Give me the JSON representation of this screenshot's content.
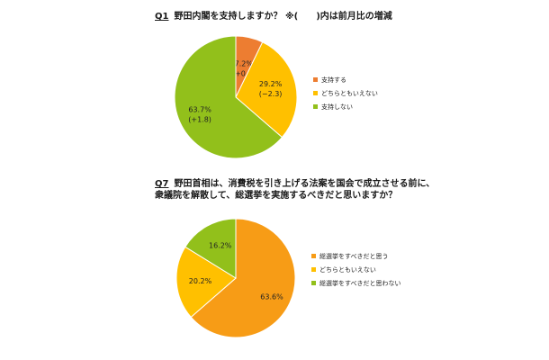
{
  "q1": {
    "num": "Q1",
    "text": "野田内閣を支持しますか？ ※(　　)内は前月比の増減"
  },
  "q7": {
    "num": "Q7",
    "line1": "野田首相は、消費税を引き上げる法案を国会で成立させる前に、",
    "line2": "衆議院を解散して、総選挙を実施するべきだと思いますか？"
  },
  "chart_data": [
    {
      "type": "pie",
      "title": "野田内閣を支持しますか？ ※(　　)内は前月比の増減",
      "series": [
        {
          "label": "支持する",
          "value": 7.2,
          "value_text": "7.2%",
          "change_text": "(+0.6)",
          "color": "#ed7d31"
        },
        {
          "label": "どちらともいえない",
          "value": 29.2,
          "value_text": "29.2%",
          "change_text": "(−2.3)",
          "color": "#ffc000"
        },
        {
          "label": "支持しない",
          "value": 63.7,
          "value_text": "63.7%",
          "change_text": "(+1.8)",
          "color": "#92c01b"
        }
      ],
      "legend_position": "right"
    },
    {
      "type": "pie",
      "title": "野田首相は、消費税を引き上げる法案を国会で成立させる前に、衆議院を解散して、総選挙を実施するべきだと思いますか？",
      "series": [
        {
          "label": "総選挙をすべきだと思う",
          "value": 63.6,
          "value_text": "63.6%",
          "color": "#f79c16"
        },
        {
          "label": "どちらともいえない",
          "value": 20.2,
          "value_text": "20.2%",
          "color": "#ffc000"
        },
        {
          "label": "総選挙をすべきだと思わない",
          "value": 16.2,
          "value_text": "16.2%",
          "color": "#92c01b"
        }
      ],
      "legend_position": "right"
    }
  ]
}
